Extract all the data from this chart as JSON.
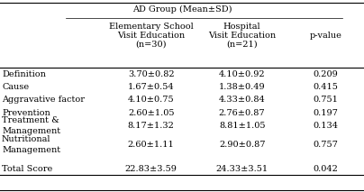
{
  "title": "AD Group (Mean±SD)",
  "col_headers_line1": [
    "Elementary School",
    "Hospital",
    ""
  ],
  "col_headers_line2": [
    "Visit Education",
    "Visit Education",
    "p-value"
  ],
  "col_headers_line3": [
    "(n=30)",
    "(n=21)",
    ""
  ],
  "row_labels": [
    "Definition",
    "Cause",
    "Aggravative factor",
    "Prevention",
    "Treatment &",
    "Management",
    "Nutritional",
    "Management",
    "Total Score"
  ],
  "col1_values": [
    "3.70±0.82",
    "1.67±0.54",
    "4.10±0.75",
    "2.60±1.05",
    "",
    "8.17±1.32",
    "",
    "2.60±1.11",
    "22.83±3.59"
  ],
  "col2_values": [
    "4.10±0.92",
    "1.38±0.49",
    "4.33±0.84",
    "2.76±0.87",
    "",
    "8.81±1.05",
    "",
    "2.90±0.87",
    "24.33±3.51"
  ],
  "col3_values": [
    "0.209",
    "0.415",
    "0.751",
    "0.197",
    "",
    "0.134",
    "",
    "0.757",
    "0.042"
  ],
  "bg_color": "#ffffff",
  "text_color": "#000000",
  "fontsize": 7.0,
  "header_fontsize": 7.0
}
